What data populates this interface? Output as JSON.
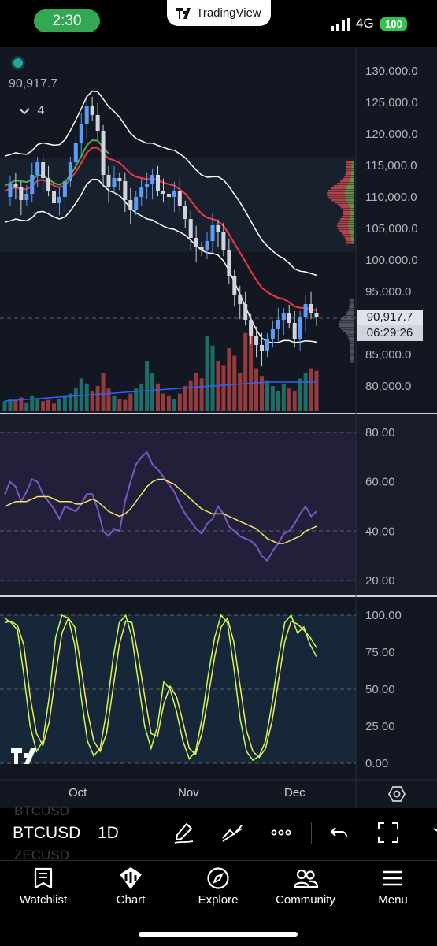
{
  "status_bar": {
    "time": "2:30",
    "app_pill": "TradingView",
    "network": "4G",
    "battery": "100"
  },
  "chart": {
    "legend_price": "90,917.7",
    "collapse_count": "4",
    "last_price_tag": "90,917.7",
    "countdown_tag": "06:29:26",
    "price_axis": [
      "130,000.0",
      "125,000.0",
      "120,000.0",
      "115,000.0",
      "110,000.0",
      "105,000.0",
      "100,000.0",
      "95,000.0",
      "85,000.0",
      "80,000.0"
    ],
    "rsi_axis": [
      "80.00",
      "60.00",
      "40.00",
      "20.00"
    ],
    "stoch_axis": [
      "100.00",
      "75.00",
      "50.00",
      "25.00",
      "0.00"
    ],
    "time_axis": [
      "Oct",
      "Nov",
      "Dec"
    ],
    "colors": {
      "up": "#5b9cf6",
      "down": "#d1d4dc",
      "bollinger": "#ffffff",
      "ema_red": "#f23645",
      "ema_green": "#4caf50",
      "rsi": "#7e57c2",
      "rsi_ma": "#f5e663",
      "stoch_k": "#c6ff4d",
      "stoch_d": "#f5e663"
    }
  },
  "chart_data": [
    {
      "type": "line",
      "title": "",
      "ylim": [
        78000,
        131000
      ],
      "x_ticks": [
        "Oct",
        "Nov",
        "Dec"
      ],
      "series": [
        {
          "values": [
            110000,
            112000,
            111500,
            109500,
            110500,
            113500,
            115500,
            113000,
            111000,
            109000,
            110000,
            112500,
            115500,
            118500,
            121500,
            124500,
            123000,
            120500,
            113500,
            111500,
            113000,
            112500,
            109500,
            108000,
            110000,
            111500,
            112000,
            113500,
            111000,
            110500,
            110000,
            111000,
            108500,
            106500,
            103500,
            102000,
            101500,
            103000,
            105500,
            104500,
            101500,
            97500,
            94500,
            93000,
            90500,
            88000,
            86500,
            85500,
            87500,
            89000,
            90500,
            91500,
            90000,
            87500,
            91000,
            93000,
            91500,
            90917.7
          ]
        },
        {
          "values": [
            111000,
            111200,
            111500,
            111300,
            111200,
            111700,
            112600,
            112700,
            112300,
            111800,
            111500,
            111800,
            112800,
            114000,
            115400,
            117000,
            117800,
            117800,
            116900,
            116100,
            115800,
            115400,
            114600,
            113700,
            113200,
            113000,
            112800,
            112900,
            112600,
            112300,
            112000,
            111800,
            111200,
            110500,
            109400,
            108300,
            107300,
            106700,
            106500,
            106200,
            105400,
            104100,
            102600,
            101200,
            99700,
            98200,
            96800,
            95600,
            94900,
            94400,
            94000,
            93800,
            93300,
            92600,
            92400,
            92400,
            92200,
            92000
          ]
        }
      ]
    },
    {
      "type": "line",
      "title": "",
      "ylim": [
        17,
        85
      ],
      "series": [
        {
          "values": [
            55,
            60,
            58,
            52,
            56,
            61,
            60,
            55,
            52,
            49,
            45,
            50,
            49,
            48,
            51,
            55,
            55,
            49,
            40,
            38,
            41,
            40,
            52,
            60,
            67,
            70,
            72,
            67,
            65,
            62,
            59,
            56,
            51,
            47,
            44,
            41,
            39,
            43,
            45,
            50,
            47,
            42,
            40,
            38,
            37,
            36,
            34,
            30,
            28,
            32,
            35,
            39,
            40,
            43,
            47,
            50,
            46,
            48
          ]
        },
        {
          "values": [
            50,
            51,
            52,
            52,
            52,
            53,
            54,
            54,
            54,
            53,
            52,
            52,
            52,
            51,
            51,
            52,
            53,
            52,
            50,
            48,
            47,
            46,
            47,
            49,
            52,
            55,
            58,
            60,
            61,
            61,
            60,
            59,
            57,
            55,
            53,
            51,
            49,
            48,
            47,
            47,
            47,
            46,
            45,
            44,
            43,
            42,
            41,
            39,
            37,
            36,
            35,
            35,
            36,
            37,
            38,
            40,
            41,
            42
          ]
        }
      ]
    },
    {
      "type": "line",
      "title": "",
      "ylim": [
        0,
        100
      ],
      "series": [
        {
          "values": [
            98,
            95,
            90,
            60,
            25,
            8,
            15,
            45,
            85,
            100,
            98,
            80,
            45,
            15,
            5,
            10,
            35,
            70,
            95,
            100,
            85,
            55,
            25,
            10,
            25,
            55,
            50,
            35,
            15,
            3,
            8,
            30,
            60,
            85,
            100,
            95,
            65,
            30,
            8,
            2,
            5,
            15,
            40,
            70,
            95,
            100,
            88,
            92,
            80,
            72
          ]
        },
        {
          "values": [
            95,
            96,
            93,
            80,
            45,
            20,
            12,
            28,
            60,
            88,
            98,
            92,
            65,
            35,
            15,
            8,
            20,
            50,
            80,
            96,
            95,
            72,
            45,
            20,
            18,
            40,
            52,
            45,
            28,
            10,
            6,
            20,
            45,
            72,
            92,
            98,
            82,
            52,
            22,
            8,
            4,
            10,
            28,
            55,
            82,
            96,
            94,
            90,
            85,
            78
          ]
        }
      ]
    }
  ],
  "toolbar": {
    "symbol": "BTCUSD",
    "interval": "1D",
    "ghost_top": "BTCUSD",
    "ghost_bottom": "ZECUSD"
  },
  "nav": {
    "items": [
      {
        "label": "Watchlist",
        "icon": "watchlist-icon"
      },
      {
        "label": "Chart",
        "icon": "chart-icon"
      },
      {
        "label": "Explore",
        "icon": "compass-icon"
      },
      {
        "label": "Community",
        "icon": "community-icon"
      },
      {
        "label": "Menu",
        "icon": "menu-icon"
      }
    ]
  }
}
